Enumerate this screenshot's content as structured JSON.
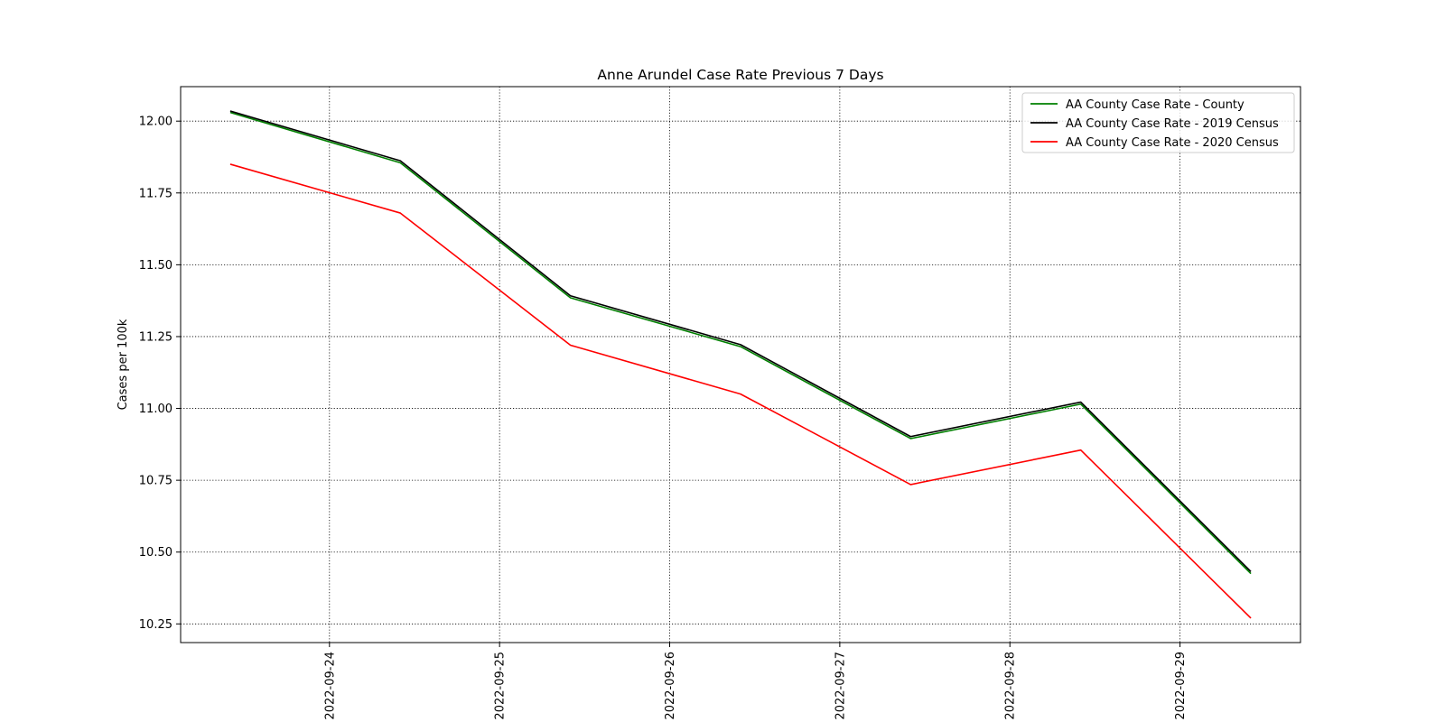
{
  "chart_data": {
    "type": "line",
    "title": "Anne Arundel Case Rate Previous 7 Days",
    "xlabel": "",
    "ylabel": "Cases per 100k",
    "x": [
      "2022-09-23 10:00",
      "2022-09-24 10:00",
      "2022-09-25 10:00",
      "2022-09-26 10:00",
      "2022-09-27 10:00",
      "2022-09-28 10:00",
      "2022-09-29 10:00"
    ],
    "xticks": [
      "2022-09-24",
      "2022-09-25",
      "2022-09-26",
      "2022-09-27",
      "2022-09-28",
      "2022-09-29"
    ],
    "yticks": [
      "10.25",
      "10.50",
      "10.75",
      "11.00",
      "11.25",
      "11.50",
      "11.75",
      "12.00"
    ],
    "ylim": [
      10.185,
      12.12
    ],
    "xlim": [
      "2022-09-23 03:00",
      "2022-09-29 17:00"
    ],
    "grid": true,
    "legend_position": "top-right",
    "series": [
      {
        "name": "AA County Case Rate - County",
        "color": "#008000",
        "values": [
          12.03,
          11.855,
          11.385,
          11.215,
          10.895,
          11.015,
          10.425
        ]
      },
      {
        "name": "AA County Case Rate - 2019 Census",
        "color": "#000000",
        "values": [
          12.035,
          11.862,
          11.392,
          11.222,
          10.902,
          11.022,
          10.432
        ]
      },
      {
        "name": "AA County Case Rate - 2020 Census",
        "color": "#ff0000",
        "values": [
          11.85,
          11.68,
          11.22,
          11.05,
          10.735,
          10.855,
          10.27
        ]
      }
    ]
  }
}
